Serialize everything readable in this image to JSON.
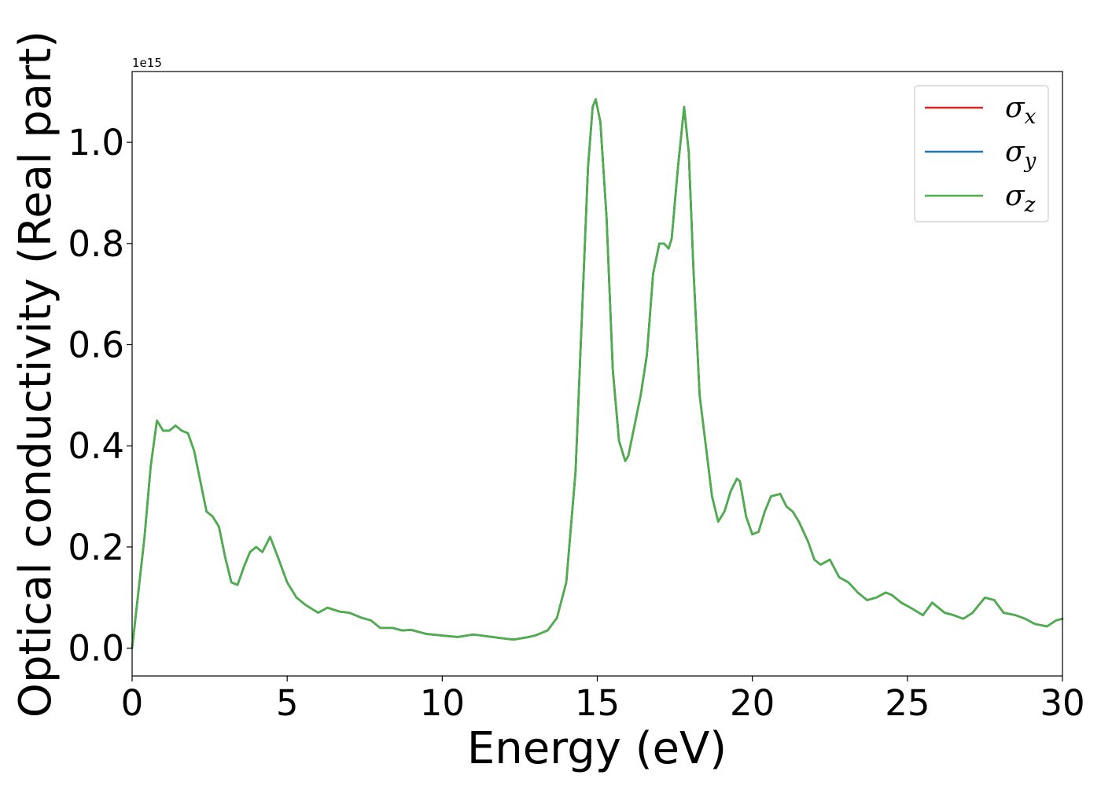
{
  "chart_data": {
    "type": "line",
    "xlabel": "Energy (eV)",
    "ylabel": "Optical conductivity (Real part)",
    "y_offset_text": "1e15",
    "xlim": [
      0,
      30
    ],
    "ylim": [
      -0.055,
      1.14
    ],
    "x_ticks": [
      0,
      5,
      10,
      15,
      20,
      25,
      30
    ],
    "x_tick_labels": [
      "0",
      "5",
      "10",
      "15",
      "20",
      "25",
      "30"
    ],
    "y_ticks": [
      0.0,
      0.2,
      0.4,
      0.6,
      0.8,
      1.0
    ],
    "y_tick_labels": [
      "0.0",
      "0.2",
      "0.4",
      "0.6",
      "0.8",
      "1.0"
    ],
    "grid": false,
    "legend_position": "top-right",
    "legend": [
      {
        "base": "σ",
        "sub": "x",
        "color": "#d62728"
      },
      {
        "base": "σ",
        "sub": "y",
        "color": "#1f77b4"
      },
      {
        "base": "σ",
        "sub": "z",
        "color": "#4daf4a"
      }
    ],
    "x": [
      0,
      0.2,
      0.4,
      0.6,
      0.8,
      1.0,
      1.2,
      1.4,
      1.6,
      1.8,
      2.0,
      2.2,
      2.4,
      2.6,
      2.8,
      3.0,
      3.2,
      3.4,
      3.6,
      3.8,
      4.0,
      4.2,
      4.45,
      4.7,
      5.0,
      5.3,
      5.6,
      6.0,
      6.3,
      6.7,
      7.0,
      7.4,
      7.7,
      8.0,
      8.4,
      8.7,
      9.0,
      9.5,
      10.0,
      10.5,
      11.0,
      11.5,
      12.0,
      12.3,
      12.7,
      13.0,
      13.4,
      13.7,
      14.0,
      14.3,
      14.5,
      14.7,
      14.85,
      14.95,
      15.1,
      15.3,
      15.5,
      15.7,
      15.9,
      16.0,
      16.2,
      16.4,
      16.6,
      16.8,
      17.0,
      17.15,
      17.3,
      17.4,
      17.6,
      17.8,
      17.95,
      18.1,
      18.3,
      18.5,
      18.7,
      18.9,
      19.1,
      19.3,
      19.5,
      19.6,
      19.8,
      20.0,
      20.2,
      20.4,
      20.6,
      20.9,
      21.1,
      21.3,
      21.5,
      21.8,
      22.0,
      22.2,
      22.5,
      22.8,
      23.1,
      23.4,
      23.7,
      24.0,
      24.3,
      24.5,
      24.8,
      25.1,
      25.5,
      25.8,
      26.2,
      26.5,
      26.8,
      27.1,
      27.5,
      27.8,
      28.1,
      28.5,
      28.8,
      29.1,
      29.5,
      29.8,
      30.0
    ],
    "series": [
      {
        "name": "σx",
        "color": "#d62728",
        "values": [
          0.0,
          0.11,
          0.22,
          0.36,
          0.45,
          0.43,
          0.43,
          0.44,
          0.43,
          0.425,
          0.39,
          0.33,
          0.27,
          0.26,
          0.24,
          0.18,
          0.13,
          0.125,
          0.16,
          0.19,
          0.2,
          0.19,
          0.22,
          0.18,
          0.13,
          0.1,
          0.085,
          0.07,
          0.08,
          0.072,
          0.07,
          0.06,
          0.055,
          0.04,
          0.04,
          0.035,
          0.036,
          0.028,
          0.025,
          0.022,
          0.027,
          0.023,
          0.019,
          0.017,
          0.021,
          0.025,
          0.035,
          0.06,
          0.13,
          0.35,
          0.65,
          0.95,
          1.07,
          1.085,
          1.04,
          0.85,
          0.55,
          0.41,
          0.37,
          0.38,
          0.44,
          0.5,
          0.58,
          0.74,
          0.8,
          0.8,
          0.79,
          0.81,
          0.95,
          1.07,
          0.98,
          0.75,
          0.5,
          0.4,
          0.3,
          0.25,
          0.27,
          0.31,
          0.335,
          0.33,
          0.26,
          0.225,
          0.23,
          0.27,
          0.3,
          0.305,
          0.28,
          0.27,
          0.25,
          0.21,
          0.175,
          0.165,
          0.175,
          0.14,
          0.13,
          0.11,
          0.095,
          0.1,
          0.11,
          0.105,
          0.09,
          0.08,
          0.065,
          0.09,
          0.07,
          0.065,
          0.058,
          0.07,
          0.1,
          0.095,
          0.07,
          0.065,
          0.058,
          0.048,
          0.043,
          0.055,
          0.058
        ]
      },
      {
        "name": "σy",
        "color": "#1f77b4",
        "values": [
          0.0,
          0.11,
          0.22,
          0.36,
          0.45,
          0.43,
          0.43,
          0.44,
          0.43,
          0.425,
          0.39,
          0.33,
          0.27,
          0.26,
          0.24,
          0.18,
          0.13,
          0.125,
          0.16,
          0.19,
          0.2,
          0.19,
          0.22,
          0.18,
          0.13,
          0.1,
          0.085,
          0.07,
          0.08,
          0.072,
          0.07,
          0.06,
          0.055,
          0.04,
          0.04,
          0.035,
          0.036,
          0.028,
          0.025,
          0.022,
          0.027,
          0.023,
          0.019,
          0.017,
          0.021,
          0.025,
          0.035,
          0.06,
          0.13,
          0.35,
          0.65,
          0.95,
          1.07,
          1.085,
          1.04,
          0.85,
          0.55,
          0.41,
          0.37,
          0.38,
          0.44,
          0.5,
          0.58,
          0.74,
          0.8,
          0.8,
          0.79,
          0.81,
          0.95,
          1.07,
          0.98,
          0.75,
          0.5,
          0.4,
          0.3,
          0.25,
          0.27,
          0.31,
          0.335,
          0.33,
          0.26,
          0.225,
          0.23,
          0.27,
          0.3,
          0.305,
          0.28,
          0.27,
          0.25,
          0.21,
          0.175,
          0.165,
          0.175,
          0.14,
          0.13,
          0.11,
          0.095,
          0.1,
          0.11,
          0.105,
          0.09,
          0.08,
          0.065,
          0.09,
          0.07,
          0.065,
          0.058,
          0.07,
          0.1,
          0.095,
          0.07,
          0.065,
          0.058,
          0.048,
          0.043,
          0.055,
          0.058
        ]
      },
      {
        "name": "σz",
        "color": "#4daf4a",
        "values": [
          0.0,
          0.11,
          0.22,
          0.36,
          0.45,
          0.43,
          0.43,
          0.44,
          0.43,
          0.425,
          0.39,
          0.33,
          0.27,
          0.26,
          0.24,
          0.18,
          0.13,
          0.125,
          0.16,
          0.19,
          0.2,
          0.19,
          0.22,
          0.18,
          0.13,
          0.1,
          0.085,
          0.07,
          0.08,
          0.072,
          0.07,
          0.06,
          0.055,
          0.04,
          0.04,
          0.035,
          0.036,
          0.028,
          0.025,
          0.022,
          0.027,
          0.023,
          0.019,
          0.017,
          0.021,
          0.025,
          0.035,
          0.06,
          0.13,
          0.35,
          0.65,
          0.95,
          1.07,
          1.085,
          1.04,
          0.85,
          0.55,
          0.41,
          0.37,
          0.38,
          0.44,
          0.5,
          0.58,
          0.74,
          0.8,
          0.8,
          0.79,
          0.81,
          0.95,
          1.07,
          0.98,
          0.75,
          0.5,
          0.4,
          0.3,
          0.25,
          0.27,
          0.31,
          0.335,
          0.33,
          0.26,
          0.225,
          0.23,
          0.27,
          0.3,
          0.305,
          0.28,
          0.27,
          0.25,
          0.21,
          0.175,
          0.165,
          0.175,
          0.14,
          0.13,
          0.11,
          0.095,
          0.1,
          0.11,
          0.105,
          0.09,
          0.08,
          0.065,
          0.09,
          0.07,
          0.065,
          0.058,
          0.07,
          0.1,
          0.095,
          0.07,
          0.065,
          0.058,
          0.048,
          0.043,
          0.055,
          0.058
        ]
      }
    ]
  }
}
